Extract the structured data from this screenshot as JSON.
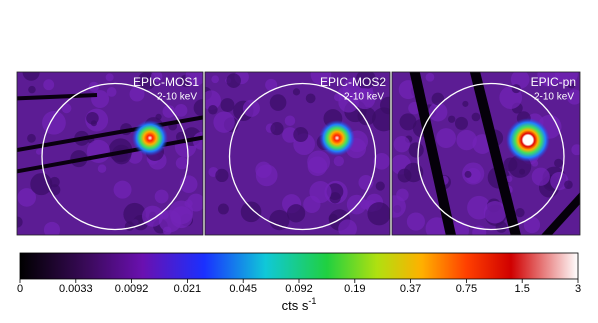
{
  "panels": [
    {
      "title": "EPIC-MOS1",
      "band": "2-10 keV"
    },
    {
      "title": "EPIC-MOS2",
      "band": "2-10 keV"
    },
    {
      "title": "EPIC-pn",
      "band": "2-10 keV"
    }
  ],
  "colorbar": {
    "ticks": [
      0,
      0.0033,
      0.0092,
      0.021,
      0.045,
      0.092,
      0.19,
      0.37,
      0.75,
      1.5,
      3
    ],
    "label": {
      "text": "cts s",
      "superscript": "-1"
    }
  }
}
